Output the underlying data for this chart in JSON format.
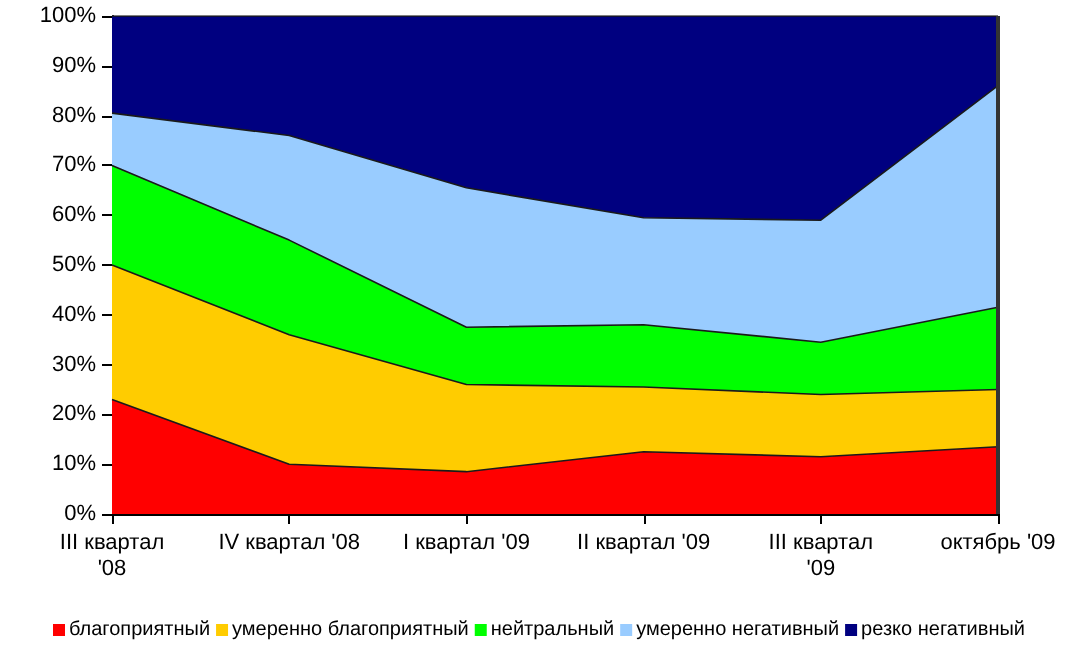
{
  "chart_data": {
    "type": "area",
    "stacked": true,
    "categories": [
      "III квартал '08",
      "IV квартал '08",
      "I квартал '09",
      "II квартал '09",
      "III квартал '09",
      "октябрь '09"
    ],
    "series": [
      {
        "name": "благоприятный",
        "color": "#ff0000",
        "values": [
          23,
          10,
          8.5,
          12.5,
          11.5,
          13.5
        ]
      },
      {
        "name": "умеренно благоприятный",
        "color": "#ffcc00",
        "values": [
          27,
          26,
          17.5,
          13,
          12.5,
          11.5
        ]
      },
      {
        "name": "нейтральный",
        "color": "#00ff00",
        "values": [
          20,
          19,
          11.5,
          12.5,
          10.5,
          16.5
        ]
      },
      {
        "name": "умеренно негативный",
        "color": "#99ccff",
        "values": [
          10.5,
          21,
          28,
          21.5,
          24.5,
          44.5
        ]
      },
      {
        "name": "резко негативный",
        "color": "#000080",
        "values": [
          19.5,
          24,
          34.5,
          40.5,
          41,
          14
        ]
      }
    ],
    "ylim": [
      0,
      100
    ],
    "yticks": [
      {
        "value": 0,
        "label": "0%"
      },
      {
        "value": 10,
        "label": "10%"
      },
      {
        "value": 20,
        "label": "20%"
      },
      {
        "value": 30,
        "label": "30%"
      },
      {
        "value": 40,
        "label": "40%"
      },
      {
        "value": 50,
        "label": "50%"
      },
      {
        "value": 60,
        "label": "60%"
      },
      {
        "value": 70,
        "label": "70%"
      },
      {
        "value": 80,
        "label": "80%"
      },
      {
        "value": 90,
        "label": "90%"
      },
      {
        "value": 100,
        "label": "100%"
      }
    ],
    "legend": "bottom",
    "marker": "none",
    "line_style": "solid"
  }
}
